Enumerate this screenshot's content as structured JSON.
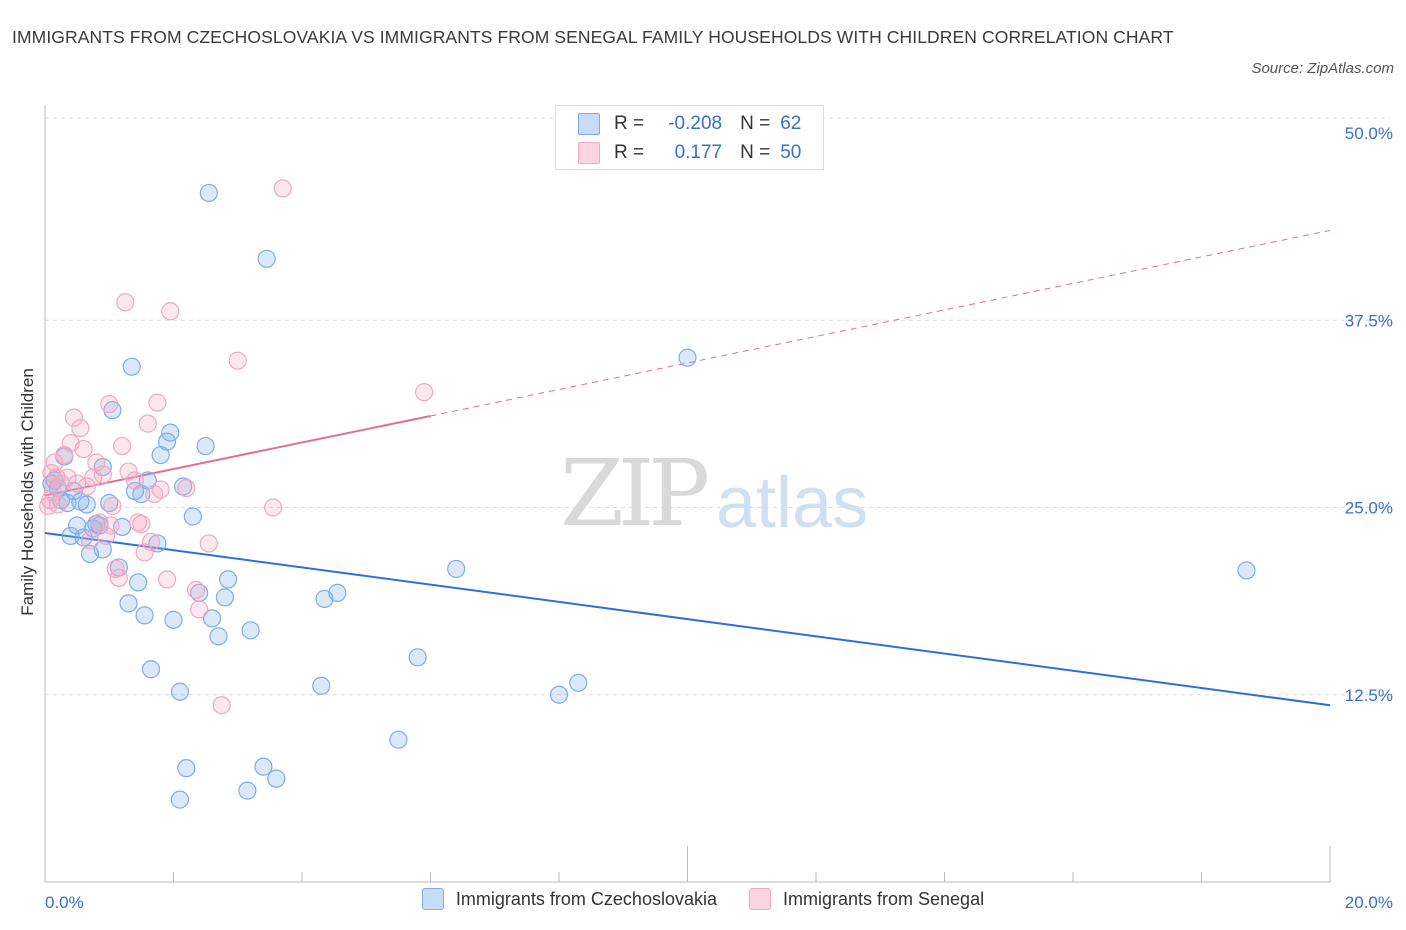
{
  "title": "IMMIGRANTS FROM CZECHOSLOVAKIA VS IMMIGRANTS FROM SENEGAL FAMILY HOUSEHOLDS WITH CHILDREN CORRELATION CHART",
  "source": "Source: ZipAtlas.com",
  "watermark": "ZIPatlas",
  "legend": {
    "rows": [
      {
        "r_label": "R =",
        "r_value": "-0.208",
        "n_label": "N =",
        "n_value": "62"
      },
      {
        "r_label": "R =",
        "r_value": "0.177",
        "n_label": "N =",
        "n_value": "50"
      }
    ]
  },
  "chart_data": {
    "type": "scatter",
    "title": "IMMIGRANTS FROM CZECHOSLOVAKIA VS IMMIGRANTS FROM SENEGAL FAMILY HOUSEHOLDS WITH CHILDREN CORRELATION CHART",
    "xlabel": "",
    "ylabel": "Family Households with Children",
    "xlim": [
      0,
      20
    ],
    "ylim": [
      0,
      50
    ],
    "x_tick_labels": [
      "0.0%",
      "20.0%"
    ],
    "y_tick_labels": [
      "12.5%",
      "25.0%",
      "37.5%",
      "50.0%"
    ],
    "y_ticks": [
      12.5,
      25,
      37.5,
      50
    ],
    "grid": true,
    "legend_position": "top-center",
    "series": [
      {
        "name": "Immigrants from Czechoslovakia",
        "color": "#7eaee6",
        "line_color": "#2f6fd4",
        "trend": {
          "x": [
            0,
            20
          ],
          "y": [
            23.3,
            11.8
          ],
          "dashed_from": null
        },
        "points": [
          [
            0.1,
            26.6
          ],
          [
            0.15,
            26.8
          ],
          [
            0.2,
            26.3
          ],
          [
            0.25,
            25.5
          ],
          [
            0.3,
            28.4
          ],
          [
            0.35,
            25.3
          ],
          [
            0.4,
            23.1
          ],
          [
            0.45,
            26.1
          ],
          [
            0.5,
            23.8
          ],
          [
            0.55,
            25.4
          ],
          [
            0.6,
            23.0
          ],
          [
            0.65,
            25.2
          ],
          [
            0.7,
            21.9
          ],
          [
            0.75,
            23.6
          ],
          [
            0.8,
            23.9
          ],
          [
            0.85,
            23.8
          ],
          [
            0.9,
            22.2
          ],
          [
            0.9,
            27.7
          ],
          [
            1.0,
            25.3
          ],
          [
            1.05,
            31.5
          ],
          [
            1.15,
            21.0
          ],
          [
            1.2,
            23.7
          ],
          [
            1.3,
            18.6
          ],
          [
            1.35,
            34.4
          ],
          [
            1.4,
            26.1
          ],
          [
            1.45,
            20.0
          ],
          [
            1.5,
            25.9
          ],
          [
            1.55,
            17.8
          ],
          [
            1.6,
            26.8
          ],
          [
            1.65,
            14.2
          ],
          [
            1.75,
            22.6
          ],
          [
            1.8,
            28.5
          ],
          [
            1.9,
            29.4
          ],
          [
            1.95,
            30.0
          ],
          [
            2.0,
            17.5
          ],
          [
            2.1,
            12.7
          ],
          [
            2.15,
            26.4
          ],
          [
            2.2,
            7.6
          ],
          [
            2.3,
            24.4
          ],
          [
            2.4,
            19.3
          ],
          [
            2.5,
            29.1
          ],
          [
            2.55,
            46.0
          ],
          [
            2.6,
            17.6
          ],
          [
            2.7,
            16.4
          ],
          [
            2.8,
            19.0
          ],
          [
            2.85,
            20.2
          ],
          [
            2.1,
            5.5
          ],
          [
            3.15,
            6.1
          ],
          [
            3.2,
            16.8
          ],
          [
            3.4,
            7.7
          ],
          [
            3.45,
            41.6
          ],
          [
            3.6,
            6.9
          ],
          [
            4.3,
            13.1
          ],
          [
            4.35,
            18.9
          ],
          [
            4.55,
            19.3
          ],
          [
            5.5,
            9.5
          ],
          [
            5.8,
            15.0
          ],
          [
            6.4,
            20.9
          ],
          [
            8.0,
            12.5
          ],
          [
            8.3,
            13.3
          ],
          [
            10.0,
            35.0
          ],
          [
            18.7,
            20.8
          ]
        ]
      },
      {
        "name": "Immigrants from Senegal",
        "color": "#f1a8c2",
        "line_color": "#e06f97",
        "trend": {
          "x": [
            0,
            20
          ],
          "y": [
            25.8,
            43.5
          ],
          "solid_until_x": 6.0
        },
        "points": [
          [
            0.05,
            25.1
          ],
          [
            0.08,
            25.5
          ],
          [
            0.1,
            27.3
          ],
          [
            0.12,
            26.0
          ],
          [
            0.15,
            28.0
          ],
          [
            0.18,
            27.0
          ],
          [
            0.2,
            25.2
          ],
          [
            0.25,
            26.6
          ],
          [
            0.3,
            28.5
          ],
          [
            0.35,
            27.0
          ],
          [
            0.4,
            29.3
          ],
          [
            0.45,
            31.0
          ],
          [
            0.5,
            26.6
          ],
          [
            0.55,
            30.3
          ],
          [
            0.6,
            28.9
          ],
          [
            0.65,
            26.4
          ],
          [
            0.7,
            22.8
          ],
          [
            0.75,
            27.0
          ],
          [
            0.8,
            28.0
          ],
          [
            0.85,
            24.0
          ],
          [
            0.9,
            27.2
          ],
          [
            0.95,
            23.1
          ],
          [
            1.0,
            31.9
          ],
          [
            1.05,
            25.1
          ],
          [
            1.1,
            20.9
          ],
          [
            1.15,
            20.3
          ],
          [
            1.2,
            29.1
          ],
          [
            1.25,
            38.7
          ],
          [
            1.3,
            27.4
          ],
          [
            1.4,
            26.8
          ],
          [
            1.45,
            24.0
          ],
          [
            1.5,
            23.9
          ],
          [
            1.55,
            22.0
          ],
          [
            1.6,
            30.6
          ],
          [
            1.65,
            22.7
          ],
          [
            1.7,
            25.9
          ],
          [
            1.75,
            32.0
          ],
          [
            1.8,
            26.2
          ],
          [
            1.9,
            20.2
          ],
          [
            1.95,
            38.1
          ],
          [
            2.2,
            26.3
          ],
          [
            2.35,
            19.5
          ],
          [
            2.4,
            18.2
          ],
          [
            2.55,
            22.6
          ],
          [
            2.75,
            11.8
          ],
          [
            3.0,
            34.8
          ],
          [
            3.55,
            25.0
          ],
          [
            3.7,
            46.3
          ],
          [
            5.9,
            32.7
          ],
          [
            1.02,
            23.8
          ]
        ]
      }
    ]
  }
}
